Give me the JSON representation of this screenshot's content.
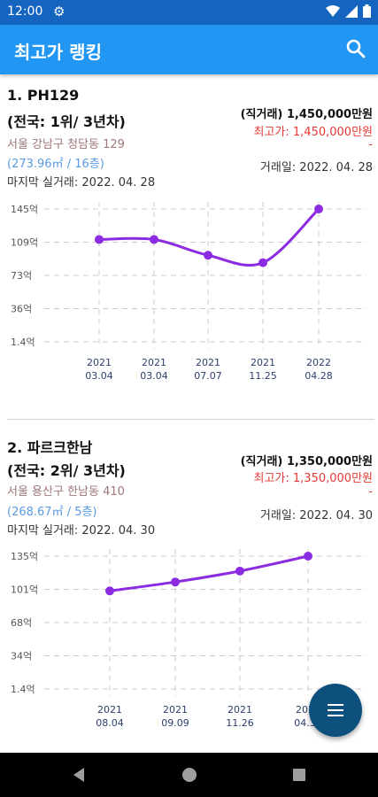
{
  "status": {
    "time": "12:00"
  },
  "appbar": {
    "title": "최고가 랭킹"
  },
  "listings": [
    {
      "name": "1. PH129",
      "rank": "(전국: 1위/ 3년차)",
      "address": "서울 강남구 청담동 129",
      "area": "(273.96㎡ / 16층)",
      "last_trade": "마지막 실거래: 2022. 04. 28",
      "trade_type_price": "(직거래) 1,450,000만원",
      "high_price": "최고가: 1,450,000만원",
      "dash": "-",
      "trade_date": "거래일: 2022. 04. 28",
      "chart_data": {
        "type": "line",
        "y_ticks": [
          "145억",
          "109억",
          "73억",
          "36억",
          "1.4억"
        ],
        "x_labels": [
          [
            "2021",
            "03.04"
          ],
          [
            "2021",
            "03.04"
          ],
          [
            "2021",
            "07.07"
          ],
          [
            "2021",
            "11.25"
          ],
          [
            "2022",
            "04.28"
          ]
        ],
        "values": [
          112,
          112,
          95,
          87,
          145
        ],
        "ylim": [
          1.4,
          145
        ],
        "grid": true,
        "colors": {
          "line": "#8b2be2"
        }
      }
    },
    {
      "name": "2. 파르크한남",
      "rank": "(전국: 2위/ 3년차)",
      "address": "서울 용산구 한남동 410",
      "area": "(268.67㎡ / 5층)",
      "last_trade": "마지막 실거래: 2022. 04. 30",
      "trade_type_price": "(직거래) 1,350,000만원",
      "high_price": "최고가: 1,350,000만원",
      "dash": "-",
      "trade_date": "거래일: 2022. 04. 30",
      "chart_data": {
        "type": "line",
        "y_ticks": [
          "135억",
          "101억",
          "68억",
          "34억",
          "1.4억"
        ],
        "x_labels": [
          [
            "2021",
            "08.04"
          ],
          [
            "2021",
            "09.09"
          ],
          [
            "2021",
            "11.26"
          ],
          [
            "2022",
            "04.30"
          ]
        ],
        "values": [
          100,
          109,
          120,
          135
        ],
        "ylim": [
          1.4,
          135
        ],
        "grid": true,
        "colors": {
          "line": "#8b2be2"
        }
      }
    }
  ],
  "fab": {
    "icon": "menu-icon"
  }
}
